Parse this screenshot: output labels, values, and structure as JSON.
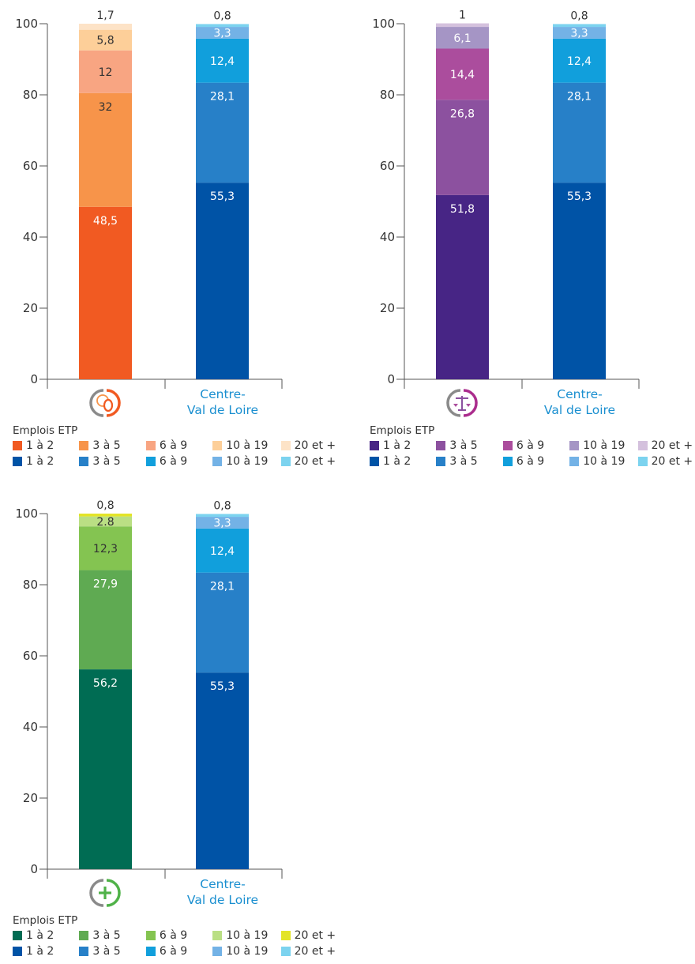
{
  "legend_title": "Emplois ETP",
  "colors": {
    "region": [
      "#0053a6",
      "#2780c8",
      "#119fdc",
      "#73b2e6",
      "#7cd3ef"
    ],
    "orange": [
      "#f15a22",
      "#f7944a",
      "#f8a582",
      "#fdcf99",
      "#fde3c7"
    ],
    "purple": [
      "#472585",
      "#8c519f",
      "#ab4d9d",
      "#a595c5",
      "#d4c1dd"
    ],
    "green": [
      "#006c53",
      "#5faa52",
      "#84c451",
      "#badf84",
      "#e3e428"
    ]
  },
  "chart_data": [
    {
      "type": "bar",
      "stacked": true,
      "ylim": [
        0,
        100
      ],
      "yticks": [
        "0",
        "20",
        "40",
        "60",
        "80",
        "100"
      ],
      "categories": [
        "",
        "Centre-\nVal de Loire"
      ],
      "category_icon": "coins-icon",
      "series": [
        {
          "name": "1 à 2",
          "values": [
            48.5,
            55.3
          ],
          "labels": [
            "48,5",
            "55,3"
          ]
        },
        {
          "name": "3 à 5",
          "values": [
            32,
            28.1
          ],
          "labels": [
            "32",
            "28,1"
          ]
        },
        {
          "name": "6 à 9",
          "values": [
            12,
            12.4
          ],
          "labels": [
            "12",
            "12,4"
          ]
        },
        {
          "name": "10 à 19",
          "values": [
            5.8,
            3.3
          ],
          "labels": [
            "5,8",
            "3,3"
          ]
        },
        {
          "name": "20 et +",
          "values": [
            1.7,
            0.8
          ],
          "labels": [
            "1,7",
            "0,8"
          ]
        }
      ],
      "palette": "orange"
    },
    {
      "type": "bar",
      "stacked": true,
      "ylim": [
        0,
        100
      ],
      "yticks": [
        "0",
        "20",
        "40",
        "60",
        "80",
        "100"
      ],
      "categories": [
        "",
        "Centre-\nVal de Loire"
      ],
      "category_icon": "scales-icon",
      "series": [
        {
          "name": "1 à 2",
          "values": [
            51.8,
            55.3
          ],
          "labels": [
            "51,8",
            "55,3"
          ]
        },
        {
          "name": "3 à 5",
          "values": [
            26.8,
            28.1
          ],
          "labels": [
            "26,8",
            "28,1"
          ]
        },
        {
          "name": "6 à 9",
          "values": [
            14.4,
            12.4
          ],
          "labels": [
            "14,4",
            "12,4"
          ]
        },
        {
          "name": "10 à 19",
          "values": [
            6.1,
            3.3
          ],
          "labels": [
            "6,1",
            "3,3"
          ]
        },
        {
          "name": "20 et +",
          "values": [
            1,
            0.8
          ],
          "labels": [
            "1",
            "0,8"
          ]
        }
      ],
      "palette": "purple"
    },
    {
      "type": "bar",
      "stacked": true,
      "ylim": [
        0,
        100
      ],
      "yticks": [
        "0",
        "20",
        "40",
        "60",
        "80",
        "100"
      ],
      "categories": [
        "",
        "Centre-\nVal de Loire"
      ],
      "category_icon": "health-cross-icon",
      "series": [
        {
          "name": "1 à 2",
          "values": [
            56.2,
            55.3
          ],
          "labels": [
            "56,2",
            "55,3"
          ]
        },
        {
          "name": "3 à 5",
          "values": [
            27.9,
            28.1
          ],
          "labels": [
            "27,9",
            "28,1"
          ]
        },
        {
          "name": "6 à 9",
          "values": [
            12.3,
            12.4
          ],
          "labels": [
            "12,3",
            "12,4"
          ]
        },
        {
          "name": "10 à 19",
          "values": [
            2.8,
            3.3
          ],
          "labels": [
            "2.8",
            "3,3"
          ]
        },
        {
          "name": "20 et +",
          "values": [
            0.8,
            0.8
          ],
          "labels": [
            "0,8",
            "0,8"
          ]
        }
      ],
      "palette": "green"
    }
  ],
  "legends": [
    {
      "rows": [
        {
          "palette": "orange",
          "items": [
            "1 à 2",
            "3 à 5",
            "6 à 9",
            "10 à 19",
            "20 et +"
          ]
        },
        {
          "palette": "region",
          "items": [
            "1 à 2",
            "3 à 5",
            "6 à 9",
            "10 à 19",
            "20 et +"
          ]
        }
      ]
    },
    {
      "rows": [
        {
          "palette": "purple",
          "items": [
            "1 à 2",
            "3 à 5",
            "6 à 9",
            "10 à 19",
            "20 et +"
          ]
        },
        {
          "palette": "region",
          "items": [
            "1 à 2",
            "3 à 5",
            "6 à 9",
            "10 à 19",
            "20 et +"
          ]
        }
      ]
    },
    {
      "rows": [
        {
          "palette": "green",
          "items": [
            "1 à 2",
            "3 à 5",
            "6 à 9",
            "10 à 19",
            "20 et +"
          ]
        },
        {
          "palette": "region",
          "items": [
            "1 à 2",
            "3 à 5",
            "6 à 9",
            "10 à 19",
            "20 et +"
          ]
        }
      ]
    }
  ]
}
